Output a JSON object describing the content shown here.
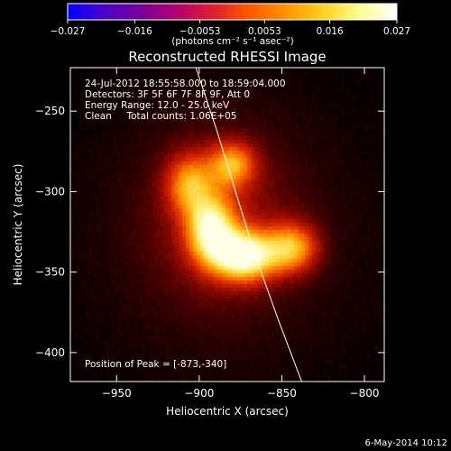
{
  "chart_data": {
    "type": "heatmap",
    "title": "Reconstructed RHESSI Image",
    "xlabel": "Heliocentric X (arcsec)",
    "ylabel": "Heliocentric Y (arcsec)",
    "xlim": [
      -978,
      -788
    ],
    "ylim": [
      -418,
      -223
    ],
    "x_ticks": [
      -950,
      -900,
      -850,
      -800
    ],
    "y_ticks": [
      -400,
      -350,
      -300,
      -250
    ],
    "x_tick_labels": [
      "−950",
      "−900",
      "−850",
      "−800"
    ],
    "y_tick_labels": [
      "−400",
      "−350",
      "−300",
      "−250"
    ],
    "colorbar": {
      "min": -0.027,
      "max": 0.027,
      "ticks": [
        -0.027,
        -0.016,
        -0.0053,
        0.0053,
        0.016,
        0.027
      ],
      "tick_labels": [
        "−0.027",
        "−0.016",
        "−0.0053",
        "0.0053",
        "0.016",
        "0.027"
      ],
      "unit": "(photons cm⁻² s⁻¹ asec⁻²)",
      "colors": [
        "#0000ff",
        "#4b00c8",
        "#780096",
        "#b4006e",
        "#e11e32",
        "#ff5a00",
        "#ff9600",
        "#ffd21e",
        "#ffff96",
        "#ffffff"
      ]
    },
    "info_lines": [
      "24-Jul-2012 18:55:58.000 to 18:59:04.000",
      "Detectors: 3F 5F 6F 7F 8F 9F, Att 0",
      "Energy Range: 12.0 - 25.0 keV",
      "Clean     Total counts: 1.06E+05"
    ],
    "peak_label": "Position of Peak = [-873,-340]",
    "peak": [
      -873,
      -340
    ],
    "sources": [
      {
        "x": -873,
        "y": -340,
        "sx": 14,
        "sy": 11,
        "amp": 1.0
      },
      {
        "x": -843,
        "y": -335,
        "sx": 11,
        "sy": 11,
        "amp": 0.65
      },
      {
        "x": -893,
        "y": -323,
        "sx": 10,
        "sy": 14,
        "amp": 0.8
      },
      {
        "x": -906,
        "y": -295,
        "sx": 10,
        "sy": 13,
        "amp": 0.55
      },
      {
        "x": -880,
        "y": -283,
        "sx": 10,
        "sy": 10,
        "amp": 0.6
      },
      {
        "x": -888,
        "y": -318,
        "sx": 32,
        "sy": 38,
        "amp": 0.28
      }
    ],
    "limb_curve": [
      [
        -902,
        -223
      ],
      [
        -890,
        -260
      ],
      [
        -878,
        -300
      ],
      [
        -866,
        -340
      ],
      [
        -852,
        -380
      ],
      [
        -838,
        -418
      ]
    ],
    "footer": "6-May-2014 10:12"
  }
}
